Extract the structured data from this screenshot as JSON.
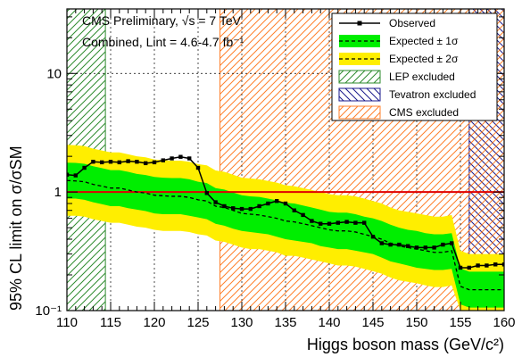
{
  "chart_data": {
    "type": "line",
    "xlabel": "Higgs boson mass (GeV/c²)",
    "ylabel": "95% CL limit on σ/σSM",
    "xlim": [
      110,
      160
    ],
    "ylim": [
      0.1,
      35
    ],
    "yscale": "log",
    "x_ticks": [
      110,
      115,
      120,
      125,
      130,
      135,
      140,
      145,
      150,
      155,
      160
    ],
    "y_ticks": [
      {
        "value": 0.1,
        "label": "10⁻¹"
      },
      {
        "value": 1,
        "label": "1"
      },
      {
        "value": 10,
        "label": "10"
      }
    ],
    "grid": true,
    "legend_position": "top-right",
    "annotations": {
      "line1": "CMS Preliminary, √s = 7 TeV",
      "line2": "Combined, Lint = 4.6-4.7 fb⁻¹"
    },
    "reference_line": {
      "value": 1,
      "color": "#e00000"
    },
    "excluded_regions": [
      {
        "name": "LEP excluded",
        "x": [
          110,
          114.4
        ],
        "color": "#2e8b2e"
      },
      {
        "name": "Tevatron excluded",
        "x": [
          156,
          160
        ],
        "color": "#1a1a8c"
      },
      {
        "name": "CMS excluded",
        "x": [
          127.5,
          160
        ],
        "color": "#ff7f2a"
      }
    ],
    "band_colors": {
      "one_sigma": "#00ee00",
      "two_sigma": "#ffee00"
    },
    "x": [
      110,
      111,
      112,
      113,
      114,
      115,
      116,
      117,
      118,
      119,
      120,
      121,
      122,
      123,
      124,
      125,
      126,
      127,
      128,
      129,
      130,
      131,
      132,
      133,
      134,
      135,
      136,
      137,
      138,
      139,
      140,
      141,
      142,
      143,
      144,
      145,
      146,
      147,
      148,
      149,
      150,
      151,
      152,
      153,
      154,
      155,
      156,
      157,
      158,
      159,
      160
    ],
    "series": [
      {
        "name": "Observed",
        "style": "solid-markers",
        "values": [
          1.4,
          1.38,
          1.6,
          1.8,
          1.78,
          1.8,
          1.78,
          1.82,
          1.8,
          1.75,
          1.78,
          1.85,
          1.92,
          1.98,
          1.92,
          1.6,
          0.98,
          0.82,
          0.76,
          0.73,
          0.72,
          0.72,
          0.76,
          0.8,
          0.84,
          0.8,
          0.7,
          0.64,
          0.57,
          0.54,
          0.54,
          0.55,
          0.56,
          0.55,
          0.55,
          0.42,
          0.37,
          0.36,
          0.36,
          0.35,
          0.34,
          0.34,
          0.34,
          0.36,
          0.37,
          0.23,
          0.23,
          0.24,
          0.24,
          0.245,
          0.245
        ]
      },
      {
        "name": "Expected ± 1σ",
        "style": "dashed",
        "values": [
          1.25,
          1.24,
          1.22,
          1.16,
          1.12,
          1.08,
          1.08,
          1.04,
          1.0,
          0.98,
          0.94,
          0.93,
          0.92,
          0.92,
          0.9,
          0.86,
          0.84,
          0.76,
          0.74,
          0.7,
          0.66,
          0.65,
          0.64,
          0.62,
          0.6,
          0.57,
          0.56,
          0.54,
          0.52,
          0.5,
          0.48,
          0.47,
          0.47,
          0.46,
          0.44,
          0.42,
          0.4,
          0.37,
          0.35,
          0.34,
          0.33,
          0.32,
          0.31,
          0.31,
          0.32,
          0.16,
          0.15,
          0.15,
          0.15,
          0.15,
          0.15
        ]
      }
    ],
    "band_1sigma": {
      "low": [
        0.88,
        0.88,
        0.86,
        0.82,
        0.79,
        0.76,
        0.76,
        0.73,
        0.71,
        0.69,
        0.66,
        0.65,
        0.65,
        0.65,
        0.63,
        0.61,
        0.59,
        0.54,
        0.52,
        0.49,
        0.47,
        0.46,
        0.45,
        0.44,
        0.42,
        0.4,
        0.39,
        0.38,
        0.37,
        0.35,
        0.34,
        0.33,
        0.33,
        0.32,
        0.31,
        0.3,
        0.28,
        0.26,
        0.25,
        0.24,
        0.23,
        0.225,
        0.22,
        0.22,
        0.225,
        0.113,
        0.106,
        0.106,
        0.106,
        0.106,
        0.106
      ],
      "high": [
        1.77,
        1.76,
        1.73,
        1.65,
        1.59,
        1.53,
        1.53,
        1.48,
        1.42,
        1.39,
        1.34,
        1.32,
        1.31,
        1.31,
        1.28,
        1.22,
        1.19,
        1.08,
        1.05,
        0.99,
        0.94,
        0.92,
        0.91,
        0.88,
        0.85,
        0.81,
        0.8,
        0.77,
        0.74,
        0.71,
        0.68,
        0.67,
        0.67,
        0.65,
        0.62,
        0.6,
        0.57,
        0.53,
        0.5,
        0.48,
        0.47,
        0.45,
        0.44,
        0.44,
        0.45,
        0.227,
        0.213,
        0.213,
        0.213,
        0.213,
        0.213
      ]
    },
    "band_2sigma": {
      "low": [
        0.63,
        0.63,
        0.62,
        0.59,
        0.57,
        0.55,
        0.55,
        0.53,
        0.51,
        0.5,
        0.48,
        0.47,
        0.47,
        0.47,
        0.46,
        0.44,
        0.43,
        0.39,
        0.38,
        0.36,
        0.34,
        0.33,
        0.33,
        0.32,
        0.31,
        0.29,
        0.29,
        0.28,
        0.27,
        0.26,
        0.25,
        0.24,
        0.24,
        0.235,
        0.225,
        0.215,
        0.205,
        0.19,
        0.18,
        0.175,
        0.17,
        0.163,
        0.158,
        0.158,
        0.163,
        0.1,
        0.1,
        0.1,
        0.1,
        0.1,
        0.1
      ],
      "high": [
        2.5,
        2.48,
        2.44,
        2.32,
        2.24,
        2.16,
        2.16,
        2.08,
        2.0,
        1.96,
        1.88,
        1.86,
        1.84,
        1.84,
        1.8,
        1.72,
        1.68,
        1.52,
        1.48,
        1.4,
        1.32,
        1.3,
        1.28,
        1.24,
        1.2,
        1.14,
        1.12,
        1.08,
        1.04,
        1.0,
        0.96,
        0.94,
        0.94,
        0.92,
        0.88,
        0.84,
        0.8,
        0.74,
        0.7,
        0.68,
        0.66,
        0.64,
        0.62,
        0.62,
        0.64,
        0.32,
        0.3,
        0.3,
        0.3,
        0.3,
        0.3
      ]
    }
  }
}
